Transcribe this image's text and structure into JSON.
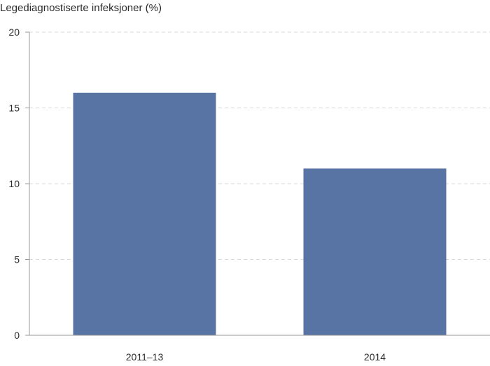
{
  "chart_data": {
    "type": "bar",
    "ylabel": "Legediagnostiserte infeksjoner (%)",
    "categories": [
      "2011–13",
      "2014"
    ],
    "values": [
      16,
      11
    ],
    "ylim": [
      0,
      20
    ],
    "yticks": [
      0,
      5,
      10,
      15,
      20
    ],
    "grid": true,
    "colors": {
      "bar": "#5874a4",
      "grid": "#d9d9d9",
      "axis": "#9a9a9a",
      "text": "#2b2b2b"
    }
  }
}
